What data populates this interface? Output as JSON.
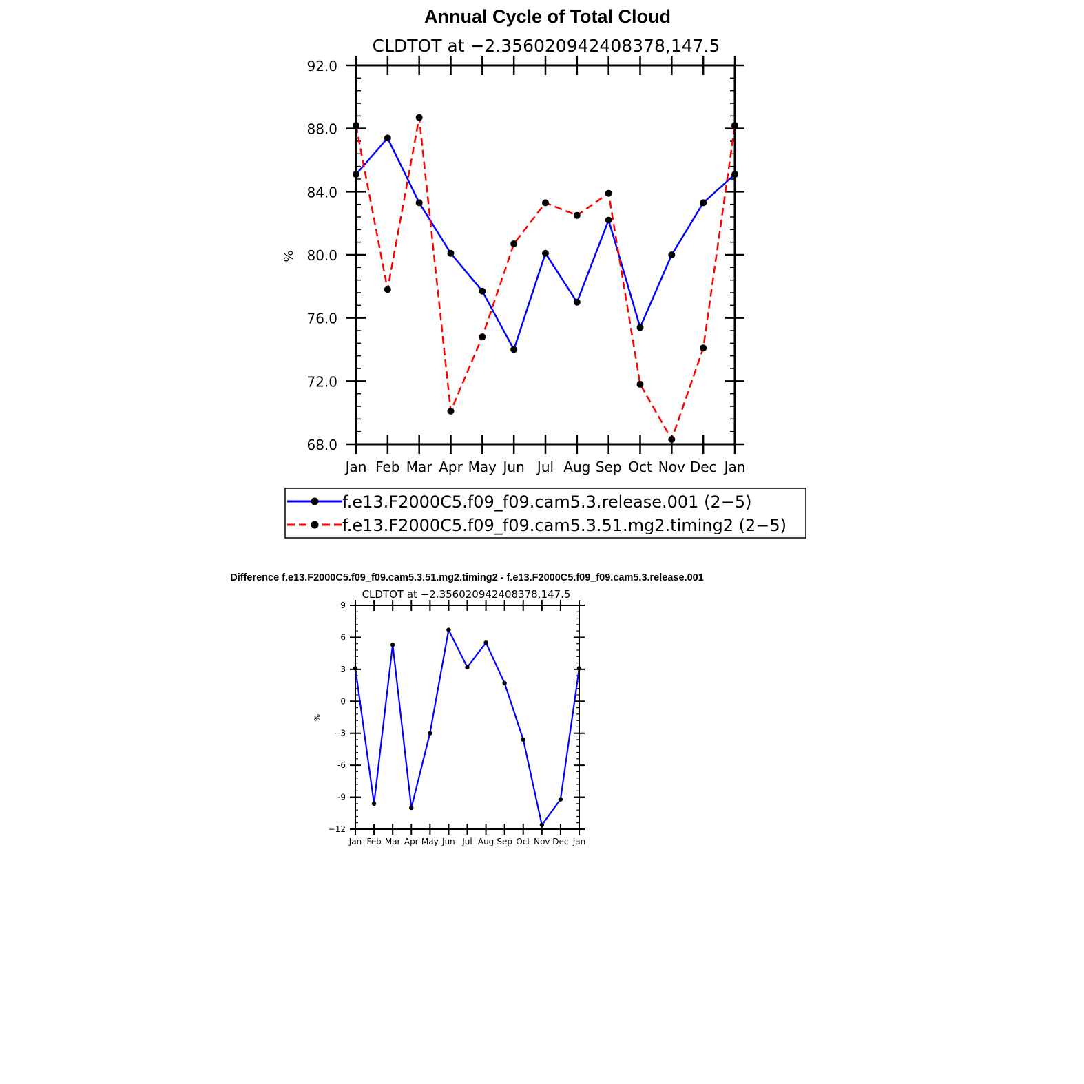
{
  "chart_data": [
    {
      "type": "line",
      "title": "Annual Cycle of Total Cloud",
      "subtitle": "CLDTOT at −2.356020942408378,147.5",
      "xlabel": "",
      "ylabel": "%",
      "categories": [
        "Jan",
        "Feb",
        "Mar",
        "Apr",
        "May",
        "Jun",
        "Jul",
        "Aug",
        "Sep",
        "Oct",
        "Nov",
        "Dec",
        "Jan"
      ],
      "ylim": [
        68.0,
        92.0
      ],
      "yticks": [
        68.0,
        72.0,
        76.0,
        80.0,
        84.0,
        88.0,
        92.0
      ],
      "ytick_labels": [
        "68.0",
        "72.0",
        "76.0",
        "80.0",
        "84.0",
        "88.0",
        "92.0"
      ],
      "grid": false,
      "legend_position": "bottom",
      "series": [
        {
          "name": "f.e13.F2000C5.f09_f09.cam5.3.release.001 (2−5)",
          "color": "#0000ff",
          "dash": "solid",
          "values": [
            85.1,
            87.4,
            83.3,
            80.1,
            77.7,
            74.0,
            80.1,
            77.0,
            82.2,
            75.4,
            80.0,
            83.3,
            85.1
          ]
        },
        {
          "name": "f.e13.F2000C5.f09_f09.cam5.3.51.mg2.timing2 (2−5)",
          "color": "#ff0000",
          "dash": "dashed",
          "values": [
            88.2,
            77.8,
            88.7,
            70.1,
            74.8,
            80.7,
            83.3,
            82.5,
            83.9,
            71.8,
            68.3,
            74.1,
            88.2
          ]
        }
      ]
    },
    {
      "type": "line",
      "title": "Difference f.e13.F2000C5.f09_f09.cam5.3.51.mg2.timing2 - f.e13.F2000C5.f09_f09.cam5.3.release.001",
      "subtitle": "CLDTOT at −2.356020942408378,147.5",
      "xlabel": "",
      "ylabel": "%",
      "categories": [
        "Jan",
        "Feb",
        "Mar",
        "Apr",
        "May",
        "Jun",
        "Jul",
        "Aug",
        "Sep",
        "Oct",
        "Nov",
        "Dec",
        "Jan"
      ],
      "ylim": [
        -12,
        9
      ],
      "yticks": [
        -12,
        -9,
        -6,
        -3,
        0,
        3,
        6,
        9
      ],
      "ytick_labels": [
        "−12",
        "-9",
        "-6",
        "−3",
        "0",
        "3",
        "6",
        "9"
      ],
      "grid": false,
      "series": [
        {
          "color": "#0000ff",
          "dash": "solid",
          "values": [
            3.1,
            -9.6,
            5.3,
            -10.0,
            -3.0,
            6.7,
            3.2,
            5.5,
            1.7,
            -3.6,
            -11.6,
            -9.2,
            3.1
          ]
        }
      ]
    }
  ]
}
